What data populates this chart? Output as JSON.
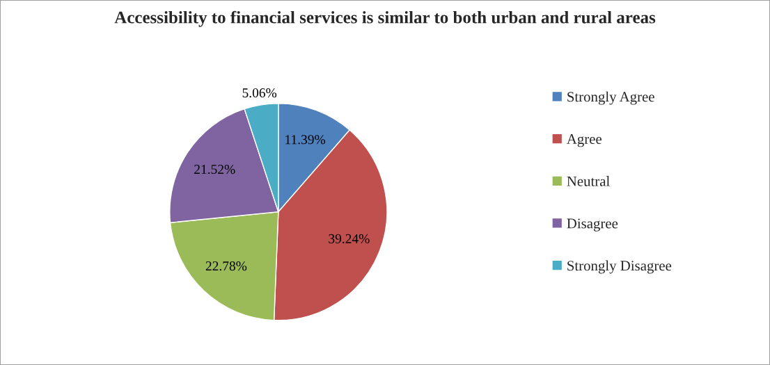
{
  "chart_data": {
    "type": "pie",
    "title": "Accessibility to financial services is similar to both urban and rural areas",
    "categories": [
      "Strongly Agree",
      "Agree",
      "Neutral",
      "Disagree",
      "Strongly Disagree"
    ],
    "values": [
      11.39,
      39.24,
      22.78,
      21.52,
      5.06
    ],
    "colors": [
      "#4f81bd",
      "#c0504d",
      "#9bbb59",
      "#8064a2",
      "#4bacc6"
    ],
    "value_labels": [
      "11.39%",
      "39.24%",
      "22.78%",
      "21.52%",
      "5.06%"
    ],
    "legend": "right"
  }
}
